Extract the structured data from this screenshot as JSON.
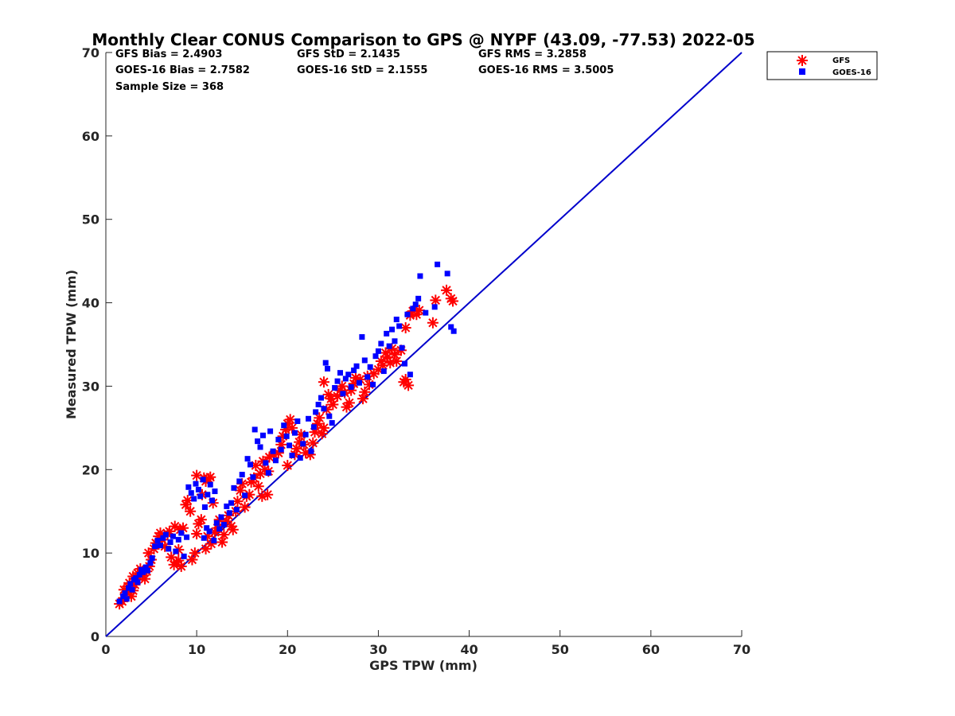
{
  "chart_data": {
    "type": "scatter",
    "title": "Monthly Clear CONUS Comparison to GPS @ NYPF (43.09, -77.53) 2022-05",
    "xlabel": "GPS TPW (mm)",
    "ylabel": "Measured TPW (mm)",
    "xlim": [
      0,
      70
    ],
    "ylim": [
      0,
      70
    ],
    "xticks": [
      0,
      10,
      20,
      30,
      40,
      50,
      60,
      70
    ],
    "yticks": [
      0,
      10,
      20,
      30,
      40,
      50,
      60,
      70
    ],
    "grid": false,
    "legend_position": "top-right-outside",
    "reference_line": {
      "x": [
        0,
        70
      ],
      "y": [
        0,
        70
      ],
      "color": "#0000cc"
    },
    "stats": {
      "gfs_bias": "GFS Bias = 2.4903",
      "gfs_std": "GFS StD = 2.1435",
      "gfs_rms": "GFS RMS = 3.2858",
      "goes_bias": "GOES-16 Bias = 2.7582",
      "goes_std": "GOES-16 StD = 2.1555",
      "goes_rms": "GOES-16 RMS = 3.5005",
      "sample_size": "Sample Size = 368"
    },
    "series": [
      {
        "name": "GFS",
        "marker": "asterisk",
        "color": "#ff0000",
        "points": [
          [
            1.5,
            3.9
          ],
          [
            1.8,
            4.2
          ],
          [
            2.0,
            4.6
          ],
          [
            2.2,
            5.0
          ],
          [
            2.0,
            5.6
          ],
          [
            2.4,
            6.0
          ],
          [
            2.6,
            6.4
          ],
          [
            2.3,
            5.3
          ],
          [
            2.8,
            4.8
          ],
          [
            3.0,
            5.5
          ],
          [
            3.2,
            6.2
          ],
          [
            3.4,
            6.8
          ],
          [
            3.0,
            7.2
          ],
          [
            3.5,
            7.6
          ],
          [
            3.8,
            8.1
          ],
          [
            4.0,
            7.3
          ],
          [
            4.3,
            6.9
          ],
          [
            4.5,
            7.8
          ],
          [
            4.8,
            8.4
          ],
          [
            5.0,
            9.2
          ],
          [
            4.7,
            10.0
          ],
          [
            5.3,
            10.5
          ],
          [
            5.5,
            11.2
          ],
          [
            5.8,
            12.0
          ],
          [
            6.0,
            12.4
          ],
          [
            6.2,
            11.6
          ],
          [
            6.5,
            10.8
          ],
          [
            6.8,
            12.3
          ],
          [
            7.0,
            12.6
          ],
          [
            7.2,
            9.5
          ],
          [
            7.5,
            8.6
          ],
          [
            7.8,
            8.9
          ],
          [
            8.0,
            9.1
          ],
          [
            8.3,
            8.4
          ],
          [
            8.0,
            10.4
          ],
          [
            7.6,
            13.2
          ],
          [
            8.2,
            12.8
          ],
          [
            8.5,
            13.0
          ],
          [
            8.8,
            15.8
          ],
          [
            9.0,
            16.3
          ],
          [
            9.3,
            15.0
          ],
          [
            9.5,
            9.2
          ],
          [
            9.8,
            10.0
          ],
          [
            10.0,
            12.3
          ],
          [
            10.2,
            13.5
          ],
          [
            10.5,
            14.0
          ],
          [
            10.0,
            19.3
          ],
          [
            10.8,
            19.0
          ],
          [
            11.0,
            18.6
          ],
          [
            11.3,
            18.9
          ],
          [
            11.5,
            19.1
          ],
          [
            11.8,
            16.0
          ],
          [
            10.6,
            17.0
          ],
          [
            11.2,
            12.0
          ],
          [
            11.6,
            11.1
          ],
          [
            11.0,
            10.5
          ],
          [
            12.0,
            12.5
          ],
          [
            12.3,
            13.0
          ],
          [
            12.5,
            14.0
          ],
          [
            12.8,
            11.3
          ],
          [
            13.0,
            12.2
          ],
          [
            13.3,
            13.8
          ],
          [
            13.5,
            14.5
          ],
          [
            13.8,
            13.2
          ],
          [
            14.0,
            12.8
          ],
          [
            14.3,
            15.0
          ],
          [
            14.5,
            16.2
          ],
          [
            14.8,
            17.5
          ],
          [
            15.0,
            18.3
          ],
          [
            15.3,
            15.5
          ],
          [
            15.5,
            16.8
          ],
          [
            15.8,
            17.0
          ],
          [
            16.0,
            18.5
          ],
          [
            16.3,
            19.0
          ],
          [
            16.5,
            20.5
          ],
          [
            16.8,
            18.0
          ],
          [
            17.0,
            19.5
          ],
          [
            17.3,
            21.0
          ],
          [
            17.5,
            20.0
          ],
          [
            17.8,
            17.0
          ],
          [
            17.2,
            16.8
          ],
          [
            17.9,
            19.8
          ],
          [
            18.0,
            21.5
          ],
          [
            18.5,
            21.8
          ],
          [
            19.0,
            22.0
          ],
          [
            19.3,
            23.0
          ],
          [
            19.5,
            24.0
          ],
          [
            19.8,
            24.8
          ],
          [
            20.0,
            25.5
          ],
          [
            20.3,
            26.0
          ],
          [
            20.5,
            25.0
          ],
          [
            20.0,
            20.5
          ],
          [
            20.8,
            21.8
          ],
          [
            21.0,
            22.5
          ],
          [
            21.3,
            23.3
          ],
          [
            21.5,
            24.2
          ],
          [
            21.8,
            23.0
          ],
          [
            22.0,
            22.0
          ],
          [
            22.5,
            21.8
          ],
          [
            22.8,
            23.2
          ],
          [
            23.0,
            24.5
          ],
          [
            23.3,
            25.5
          ],
          [
            23.5,
            26.2
          ],
          [
            23.8,
            24.3
          ],
          [
            24.0,
            25.0
          ],
          [
            24.3,
            27.2
          ],
          [
            24.5,
            29.0
          ],
          [
            24.0,
            30.5
          ],
          [
            24.8,
            28.5
          ],
          [
            25.0,
            27.8
          ],
          [
            25.5,
            28.8
          ],
          [
            25.8,
            29.5
          ],
          [
            26.0,
            30.0
          ],
          [
            26.3,
            29.2
          ],
          [
            26.5,
            27.5
          ],
          [
            26.8,
            28.0
          ],
          [
            27.0,
            29.5
          ],
          [
            27.3,
            30.3
          ],
          [
            27.5,
            31.0
          ],
          [
            28.0,
            30.8
          ],
          [
            28.3,
            28.5
          ],
          [
            28.5,
            29.3
          ],
          [
            28.8,
            31.2
          ],
          [
            29.0,
            30.2
          ],
          [
            29.5,
            31.5
          ],
          [
            30.0,
            32.0
          ],
          [
            30.3,
            33.0
          ],
          [
            30.5,
            32.5
          ],
          [
            30.8,
            34.0
          ],
          [
            31.0,
            33.5
          ],
          [
            31.3,
            32.8
          ],
          [
            31.5,
            34.5
          ],
          [
            31.8,
            33.8
          ],
          [
            32.0,
            33.0
          ],
          [
            32.5,
            34.3
          ],
          [
            32.8,
            30.5
          ],
          [
            33.0,
            30.8
          ],
          [
            33.3,
            30.1
          ],
          [
            33.0,
            37.0
          ],
          [
            33.5,
            38.5
          ],
          [
            33.8,
            39.0
          ],
          [
            34.2,
            38.6
          ],
          [
            34.5,
            39.1
          ],
          [
            36.0,
            37.6
          ],
          [
            36.3,
            40.3
          ],
          [
            37.5,
            41.5
          ],
          [
            38.0,
            40.5
          ],
          [
            38.2,
            40.2
          ]
        ]
      },
      {
        "name": "GOES-16",
        "marker": "square",
        "color": "#0000ff",
        "points": [
          [
            1.5,
            4.2
          ],
          [
            1.9,
            4.8
          ],
          [
            2.1,
            5.2
          ],
          [
            2.3,
            4.5
          ],
          [
            2.5,
            5.8
          ],
          [
            2.7,
            6.3
          ],
          [
            2.9,
            5.6
          ],
          [
            3.1,
            6.8
          ],
          [
            3.3,
            7.0
          ],
          [
            3.5,
            6.5
          ],
          [
            3.7,
            7.4
          ],
          [
            3.9,
            8.0
          ],
          [
            4.1,
            7.7
          ],
          [
            4.4,
            8.3
          ],
          [
            4.6,
            7.9
          ],
          [
            4.9,
            8.8
          ],
          [
            5.1,
            9.4
          ],
          [
            5.4,
            10.8
          ],
          [
            5.7,
            11.5
          ],
          [
            6.0,
            10.9
          ],
          [
            6.3,
            11.8
          ],
          [
            6.6,
            12.2
          ],
          [
            6.9,
            10.5
          ],
          [
            7.1,
            11.3
          ],
          [
            7.4,
            12.0
          ],
          [
            7.7,
            10.2
          ],
          [
            8.0,
            11.6
          ],
          [
            8.3,
            12.4
          ],
          [
            8.6,
            9.6
          ],
          [
            8.9,
            11.9
          ],
          [
            9.1,
            17.9
          ],
          [
            9.4,
            17.2
          ],
          [
            9.7,
            16.5
          ],
          [
            9.9,
            18.3
          ],
          [
            10.2,
            17.6
          ],
          [
            10.4,
            16.8
          ],
          [
            10.7,
            18.8
          ],
          [
            10.9,
            15.5
          ],
          [
            11.2,
            17.0
          ],
          [
            11.5,
            18.2
          ],
          [
            11.7,
            16.3
          ],
          [
            12.0,
            17.4
          ],
          [
            10.8,
            11.8
          ],
          [
            11.1,
            13.0
          ],
          [
            11.4,
            12.6
          ],
          [
            11.9,
            11.5
          ],
          [
            12.2,
            13.6
          ],
          [
            12.5,
            12.9
          ],
          [
            12.7,
            14.3
          ],
          [
            13.0,
            13.4
          ],
          [
            13.3,
            15.6
          ],
          [
            13.6,
            14.8
          ],
          [
            13.8,
            16.0
          ],
          [
            14.1,
            17.8
          ],
          [
            14.4,
            15.2
          ],
          [
            14.7,
            18.6
          ],
          [
            15.0,
            19.4
          ],
          [
            15.3,
            16.9
          ],
          [
            15.6,
            21.3
          ],
          [
            15.9,
            20.6
          ],
          [
            16.2,
            19.1
          ],
          [
            16.4,
            24.8
          ],
          [
            16.7,
            23.4
          ],
          [
            17.0,
            22.7
          ],
          [
            17.3,
            24.1
          ],
          [
            17.6,
            20.8
          ],
          [
            17.9,
            19.6
          ],
          [
            18.1,
            24.6
          ],
          [
            18.4,
            22.2
          ],
          [
            18.7,
            21.1
          ],
          [
            19.0,
            23.6
          ],
          [
            19.3,
            22.4
          ],
          [
            19.6,
            25.3
          ],
          [
            19.9,
            24.0
          ],
          [
            20.2,
            22.9
          ],
          [
            20.5,
            21.7
          ],
          [
            20.8,
            24.4
          ],
          [
            21.1,
            25.8
          ],
          [
            21.4,
            21.4
          ],
          [
            21.7,
            23.1
          ],
          [
            22.0,
            24.2
          ],
          [
            22.3,
            26.1
          ],
          [
            22.6,
            22.2
          ],
          [
            22.9,
            25.1
          ],
          [
            23.1,
            26.9
          ],
          [
            23.4,
            27.8
          ],
          [
            23.7,
            28.6
          ],
          [
            24.0,
            27.3
          ],
          [
            24.2,
            32.8
          ],
          [
            24.4,
            32.1
          ],
          [
            24.6,
            26.4
          ],
          [
            24.9,
            25.6
          ],
          [
            25.2,
            29.8
          ],
          [
            25.5,
            30.6
          ],
          [
            25.8,
            31.6
          ],
          [
            26.1,
            29.1
          ],
          [
            26.4,
            30.9
          ],
          [
            26.7,
            31.4
          ],
          [
            27.0,
            29.9
          ],
          [
            27.3,
            31.9
          ],
          [
            27.6,
            32.4
          ],
          [
            27.9,
            30.4
          ],
          [
            28.2,
            35.9
          ],
          [
            28.5,
            33.1
          ],
          [
            28.8,
            31.1
          ],
          [
            29.1,
            32.3
          ],
          [
            29.4,
            30.2
          ],
          [
            29.7,
            33.6
          ],
          [
            30.0,
            34.2
          ],
          [
            30.3,
            35.1
          ],
          [
            30.6,
            31.8
          ],
          [
            30.9,
            36.3
          ],
          [
            31.2,
            34.8
          ],
          [
            31.5,
            36.8
          ],
          [
            31.8,
            35.4
          ],
          [
            32.0,
            38.0
          ],
          [
            32.3,
            37.2
          ],
          [
            32.6,
            34.6
          ],
          [
            32.9,
            32.7
          ],
          [
            33.2,
            38.6
          ],
          [
            33.5,
            31.4
          ],
          [
            33.8,
            39.3
          ],
          [
            34.1,
            39.8
          ],
          [
            34.4,
            40.5
          ],
          [
            34.6,
            43.2
          ],
          [
            35.2,
            38.8
          ],
          [
            36.2,
            39.5
          ],
          [
            36.5,
            44.6
          ],
          [
            37.6,
            43.5
          ],
          [
            38.0,
            37.1
          ],
          [
            38.3,
            36.6
          ]
        ]
      }
    ]
  }
}
